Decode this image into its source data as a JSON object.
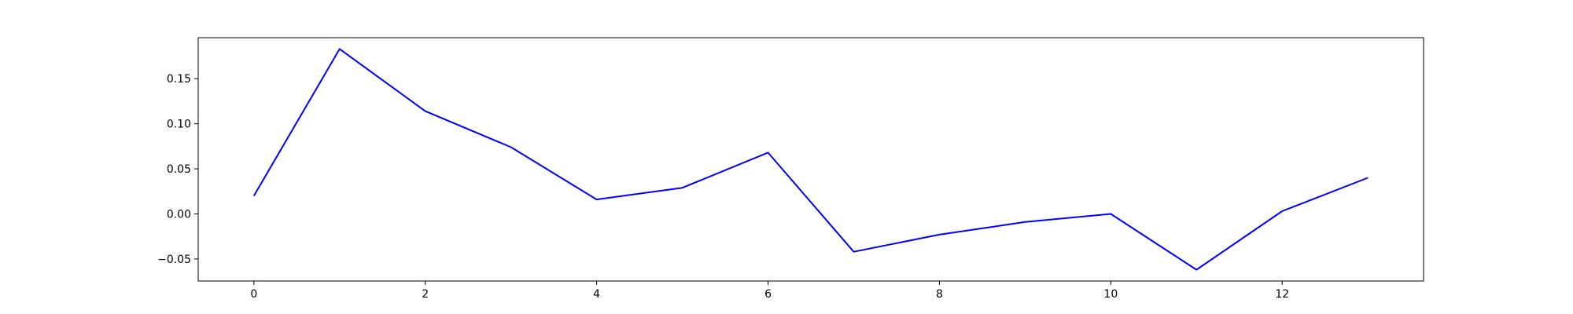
{
  "chart_data": {
    "type": "line",
    "title": "",
    "xlabel": "",
    "ylabel": "",
    "xlim": [
      -0.65,
      13.65
    ],
    "ylim": [
      -0.0745,
      0.1955
    ],
    "xticks": [
      0,
      2,
      4,
      6,
      8,
      10,
      12
    ],
    "xtick_labels": [
      "0",
      "2",
      "4",
      "6",
      "8",
      "10",
      "12"
    ],
    "yticks": [
      -0.05,
      0.0,
      0.05,
      0.1,
      0.15
    ],
    "ytick_labels": [
      "−0.05",
      "0.00",
      "0.05",
      "0.10",
      "0.15"
    ],
    "grid": false,
    "legend": "none",
    "series": [
      {
        "color": "#0000ff",
        "x": [
          0,
          1,
          2,
          3,
          4,
          5,
          6,
          7,
          8,
          9,
          10,
          11,
          12,
          13
        ],
        "values": [
          0.02,
          0.183,
          0.114,
          0.074,
          0.016,
          0.029,
          0.068,
          -0.042,
          -0.023,
          -0.009,
          0.0,
          -0.062,
          0.003,
          0.04
        ]
      }
    ]
  }
}
